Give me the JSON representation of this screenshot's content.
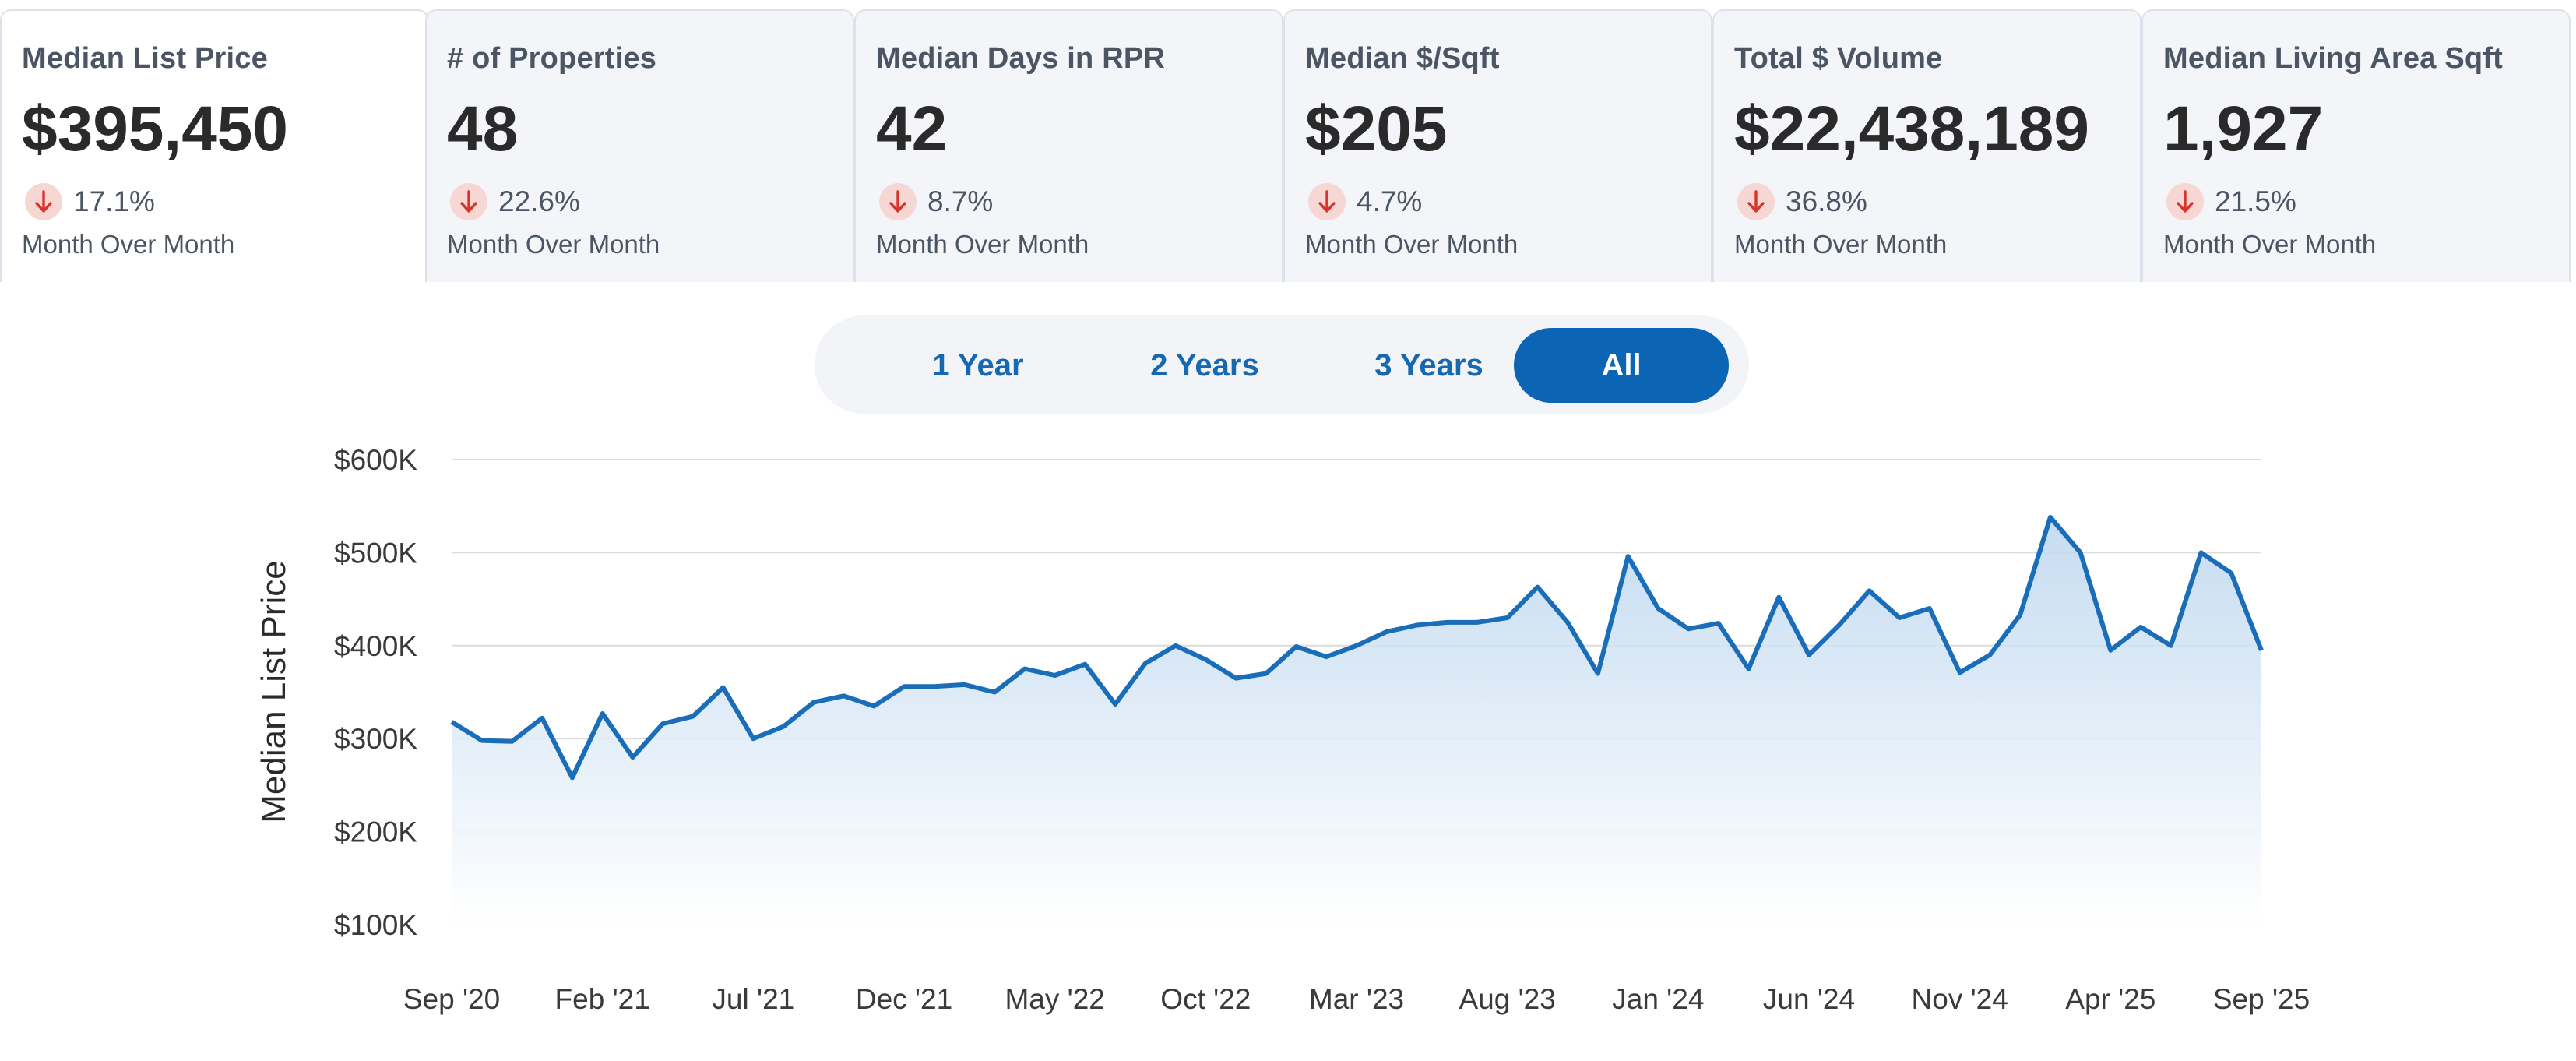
{
  "metrics": [
    {
      "label": "Median List Price",
      "value": "$395,450",
      "change": "17.1%",
      "direction": "down",
      "period": "Month Over Month",
      "active": true
    },
    {
      "label": "# of Properties",
      "value": "48",
      "change": "22.6%",
      "direction": "down",
      "period": "Month Over Month",
      "active": false
    },
    {
      "label": "Median Days in RPR",
      "value": "42",
      "change": "8.7%",
      "direction": "down",
      "period": "Month Over Month",
      "active": false
    },
    {
      "label": "Median $/Sqft",
      "value": "$205",
      "change": "4.7%",
      "direction": "down",
      "period": "Month Over Month",
      "active": false
    },
    {
      "label": "Total $ Volume",
      "value": "$22,438,189",
      "change": "36.8%",
      "direction": "down",
      "period": "Month Over Month",
      "active": false
    },
    {
      "label": "Median Living Area Sqft",
      "value": "1,927",
      "change": "21.5%",
      "direction": "down",
      "period": "Month Over Month",
      "active": false
    }
  ],
  "range_buttons": [
    {
      "label": "1 Year",
      "active": false
    },
    {
      "label": "2 Years",
      "active": false
    },
    {
      "label": "3 Years",
      "active": false
    },
    {
      "label": "All",
      "active": true
    }
  ],
  "colors": {
    "accent": "#0b65b4",
    "line": "#1a6db8",
    "down_badge_bg": "#f6d7d3",
    "down_arrow": "#d9342b"
  },
  "chart_data": {
    "type": "area",
    "title": "",
    "xlabel": "",
    "ylabel": "Median List Price",
    "ylim": [
      100000,
      600000
    ],
    "grid": true,
    "y_ticks": [
      100000,
      200000,
      300000,
      400000,
      500000,
      600000
    ],
    "y_tick_labels": [
      "$100K",
      "$200K",
      "$300K",
      "$400K",
      "$500K",
      "$600K"
    ],
    "x_tick_labels": [
      "Sep '20",
      "Feb '21",
      "Jul '21",
      "Dec '21",
      "May '22",
      "Oct '22",
      "Mar '23",
      "Aug '23",
      "Jan '24",
      "Jun '24",
      "Nov '24",
      "Apr '25",
      "Sep '25"
    ],
    "x_tick_month_index": [
      0,
      5,
      10,
      15,
      20,
      25,
      30,
      35,
      40,
      45,
      50,
      55,
      60
    ],
    "series": [
      {
        "start_month": "Sep '20",
        "values": [
          318000,
          298000,
          297000,
          322000,
          258000,
          327000,
          280000,
          316000,
          324000,
          355000,
          300000,
          313000,
          339000,
          346000,
          335000,
          356000,
          356000,
          358000,
          350000,
          375000,
          368000,
          380000,
          337000,
          381000,
          400000,
          385000,
          365000,
          370000,
          399000,
          388000,
          400000,
          415000,
          422000,
          425000,
          425000,
          430000,
          463000,
          425000,
          370000,
          496000,
          440000,
          418000,
          424000,
          375000,
          452000,
          390000,
          422000,
          459000,
          430000,
          440000,
          371000,
          390000,
          433000,
          538000,
          500000,
          395000,
          420000,
          400000,
          500000,
          478000,
          395000
        ]
      }
    ]
  }
}
